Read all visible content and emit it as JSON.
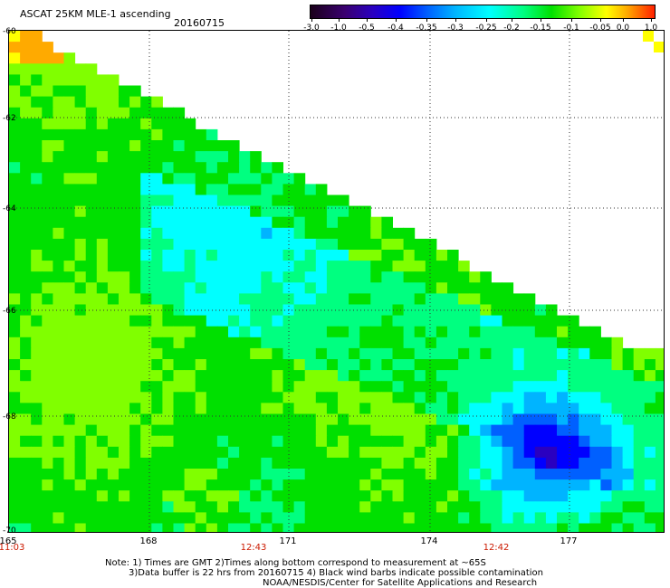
{
  "title": "ASCAT 25KM MLE-1 ascending",
  "date": "20160715",
  "colorbar": {
    "labels": [
      "-3.0",
      "-1.0",
      "-0.5",
      "-0.4",
      "-0.35",
      "-0.3",
      "-0.25",
      "-0.2",
      "-0.15",
      "-0.1",
      "-0.05",
      "0.0",
      "1.0"
    ]
  },
  "axes": {
    "y_labels": [
      "-60",
      "-62",
      "-64",
      "-66",
      "-68",
      "-70"
    ],
    "x_labels": [
      "165",
      "168",
      "171",
      "174",
      "177"
    ],
    "times": [
      "11:03",
      "12:43",
      "12:42"
    ]
  },
  "notes": {
    "line1": "Note: 1) Times are GMT 2)Times along bottom correspond to measurement at ~65S",
    "line2": "3)Data buffer is 22 hrs from 20160715 4) Black wind barbs indicate possible contamination",
    "line3": "NOAA/NESDIS/Center for Satellite Applications and Research"
  },
  "colors": {
    "scale": [
      "#1a001a",
      "#3a0070",
      "#2a00c0",
      "#0000ff",
      "#0060ff",
      "#00b4ff",
      "#00ffff",
      "#00ff80",
      "#00e000",
      "#80ff00",
      "#ffff00",
      "#ffaa00",
      "#ff2000"
    ],
    "time_text": "#cc1a00"
  }
}
